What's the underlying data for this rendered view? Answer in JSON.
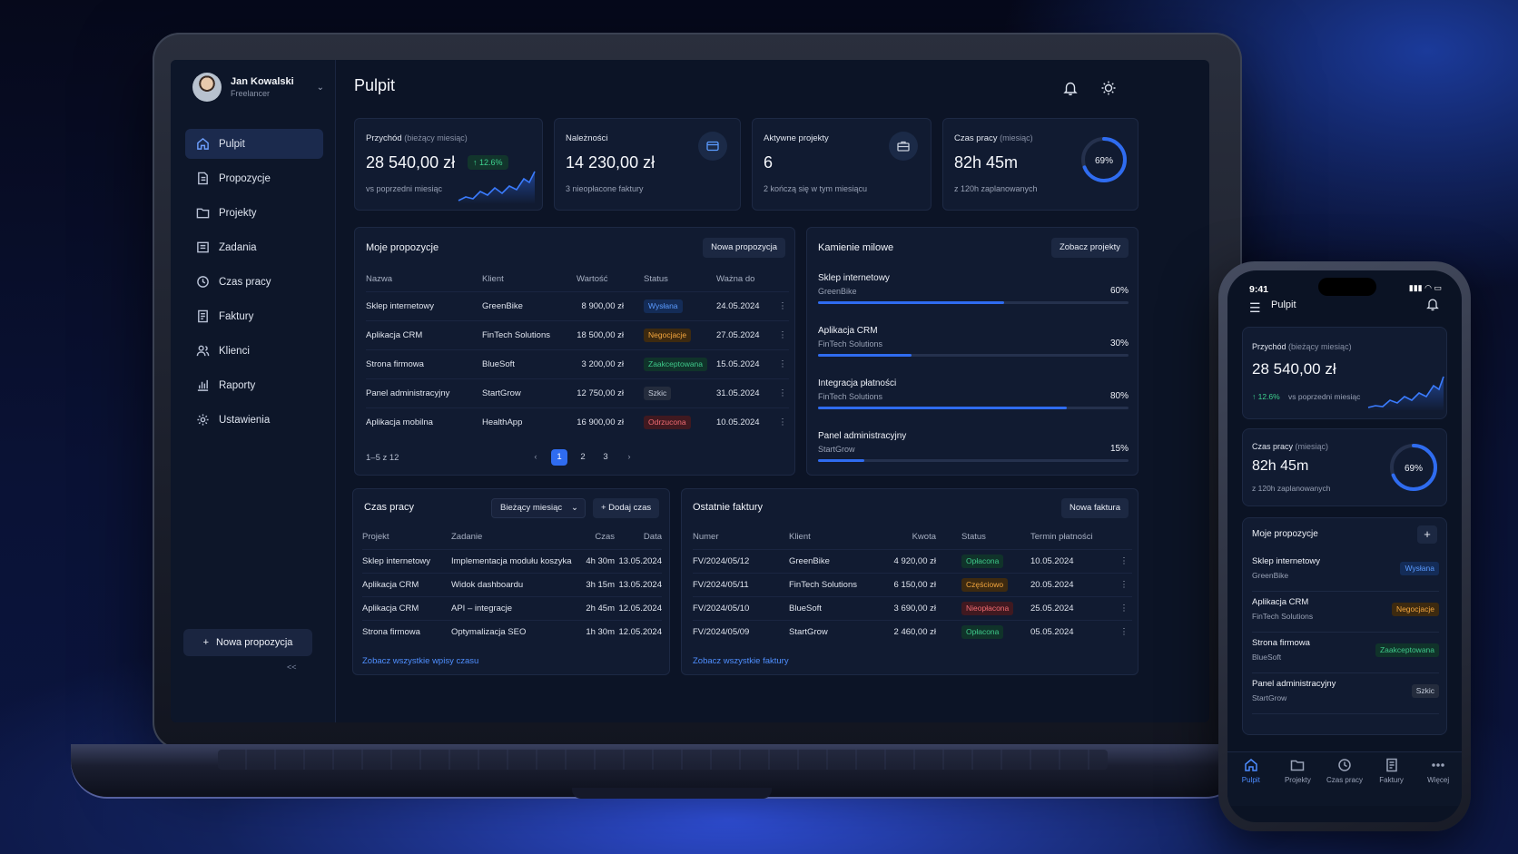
{
  "user": {
    "name": "Jan Kowalski",
    "role": "Freelancer"
  },
  "sidebar": {
    "items": [
      {
        "label": "Pulpit",
        "icon": "home-icon"
      },
      {
        "label": "Propozycje",
        "icon": "document-icon"
      },
      {
        "label": "Projekty",
        "icon": "folder-icon"
      },
      {
        "label": "Zadania",
        "icon": "tasks-icon"
      },
      {
        "label": "Czas pracy",
        "icon": "clock-icon"
      },
      {
        "label": "Faktury",
        "icon": "invoice-icon"
      },
      {
        "label": "Klienci",
        "icon": "users-icon"
      },
      {
        "label": "Raporty",
        "icon": "chart-icon"
      },
      {
        "label": "Ustawienia",
        "icon": "gear-icon"
      }
    ],
    "new_proposal": "Nowa propozycja",
    "collapse": "<<"
  },
  "header": {
    "title": "Pulpit"
  },
  "kpi": {
    "revenue": {
      "label": "Przychód",
      "label_note": "(bieżący miesiąc)",
      "value": "28 540,00 zł",
      "change": "↑ 12.6%",
      "sub": "vs poprzedni miesiąc"
    },
    "receivables": {
      "label": "Należności",
      "value": "14 230,00 zł",
      "sub": "3 nieopłacone faktury"
    },
    "projects": {
      "label": "Aktywne projekty",
      "value": "6",
      "sub": "2 kończą się w tym miesiącu"
    },
    "worktime": {
      "label": "Czas pracy",
      "label_note": "(miesiąc)",
      "value": "82h 45m",
      "sub": "z 120h zaplanowanych",
      "percent": "69%",
      "fraction": 0.69
    }
  },
  "proposals": {
    "title": "Moje propozycje",
    "button": "Nowa propozycja",
    "columns": [
      "Nazwa",
      "Klient",
      "Wartość",
      "Status",
      "Ważna do"
    ],
    "rows": [
      {
        "name": "Sklep internetowy",
        "client": "GreenBike",
        "value": "8 900,00 zł",
        "status": "Wysłana",
        "tone": "blue",
        "date": "24.05.2024"
      },
      {
        "name": "Aplikacja CRM",
        "client": "FinTech Solutions",
        "value": "18 500,00 zł",
        "status": "Negocjacje",
        "tone": "orange",
        "date": "27.05.2024"
      },
      {
        "name": "Strona firmowa",
        "client": "BlueSoft",
        "value": "3 200,00 zł",
        "status": "Zaakceptowana",
        "tone": "green",
        "date": "15.05.2024"
      },
      {
        "name": "Panel administracyjny",
        "client": "StartGrow",
        "value": "12 750,00 zł",
        "status": "Szkic",
        "tone": "gray",
        "date": "31.05.2024"
      },
      {
        "name": "Aplikacja mobilna",
        "client": "HealthApp",
        "value": "16 900,00 zł",
        "status": "Odrzucona",
        "tone": "red",
        "date": "10.05.2024"
      }
    ],
    "pagination": {
      "summary": "1–5 z 12",
      "prev": "‹",
      "next": "›",
      "pages": [
        "1",
        "2",
        "3"
      ]
    }
  },
  "milestones": {
    "title": "Kamienie milowe",
    "button": "Zobacz projekty",
    "items": [
      {
        "name": "Sklep internetowy",
        "client": "GreenBike",
        "percent": "60%",
        "progress": 0.6
      },
      {
        "name": "Aplikacja CRM",
        "client": "FinTech Solutions",
        "percent": "30%",
        "progress": 0.3
      },
      {
        "name": "Integracja płatności",
        "client": "FinTech Solutions",
        "percent": "80%",
        "progress": 0.8
      },
      {
        "name": "Panel administracyjny",
        "client": "StartGrow",
        "percent": "15%",
        "progress": 0.15
      }
    ]
  },
  "timelog": {
    "title": "Czas pracy",
    "select": "Bieżący miesiąc",
    "button": "+ Dodaj czas",
    "columns": [
      "Projekt",
      "Zadanie",
      "Czas",
      "Data"
    ],
    "rows": [
      {
        "project": "Sklep internetowy",
        "task": "Implementacja modułu koszyka",
        "time": "4h 30m",
        "date": "13.05.2024"
      },
      {
        "project": "Aplikacja CRM",
        "task": "Widok dashboardu",
        "time": "3h 15m",
        "date": "13.05.2024"
      },
      {
        "project": "Aplikacja CRM",
        "task": "API – integracje",
        "time": "2h 45m",
        "date": "12.05.2024"
      },
      {
        "project": "Strona firmowa",
        "task": "Optymalizacja SEO",
        "time": "1h 30m",
        "date": "12.05.2024"
      }
    ],
    "link": "Zobacz wszystkie wpisy czasu"
  },
  "invoices": {
    "title": "Ostatnie faktury",
    "button": "Nowa faktura",
    "columns": [
      "Numer",
      "Klient",
      "Kwota",
      "Status",
      "Termin płatności"
    ],
    "rows": [
      {
        "number": "FV/2024/05/12",
        "client": "GreenBike",
        "amount": "4 920,00 zł",
        "status": "Opłacona",
        "tone": "green",
        "due": "10.05.2024"
      },
      {
        "number": "FV/2024/05/11",
        "client": "FinTech Solutions",
        "amount": "6 150,00 zł",
        "status": "Częściowo",
        "tone": "orange",
        "due": "20.05.2024"
      },
      {
        "number": "FV/2024/05/10",
        "client": "BlueSoft",
        "amount": "3 690,00 zł",
        "status": "Nieopłacona",
        "tone": "red",
        "due": "25.05.2024"
      },
      {
        "number": "FV/2024/05/09",
        "client": "StartGrow",
        "amount": "2 460,00 zł",
        "status": "Opłacona",
        "tone": "green",
        "due": "05.05.2024"
      }
    ],
    "link": "Zobacz wszystkie faktury"
  },
  "phone": {
    "time": "9:41",
    "status": "▮▮▮ ◠ ▭",
    "title": "Pulpit",
    "revenue": {
      "label": "Przychód",
      "label_note": "(bieżący miesiąc)",
      "value": "28 540,00 zł",
      "change": "↑ 12.6%",
      "sub": "vs poprzedni miesiąc"
    },
    "worktime": {
      "label": "Czas pracy",
      "label_note": "(miesiąc)",
      "value": "82h 45m",
      "sub": "z 120h zaplanowanych",
      "percent": "69%"
    },
    "proposals_title": "Moje propozycje",
    "add": "+",
    "proposals": [
      {
        "name": "Sklep internetowy",
        "client": "GreenBike",
        "status": "Wysłana",
        "tone": "blue"
      },
      {
        "name": "Aplikacja CRM",
        "client": "FinTech Solutions",
        "status": "Negocjacje",
        "tone": "orange"
      },
      {
        "name": "Strona firmowa",
        "client": "BlueSoft",
        "status": "Zaakceptowana",
        "tone": "green"
      },
      {
        "name": "Panel administracyjny",
        "client": "StartGrow",
        "status": "Szkic",
        "tone": "gray"
      }
    ],
    "tabs": [
      {
        "label": "Pulpit",
        "icon": "home-icon"
      },
      {
        "label": "Projekty",
        "icon": "folder-icon"
      },
      {
        "label": "Czas pracy",
        "icon": "clock-icon"
      },
      {
        "label": "Faktury",
        "icon": "invoice-icon"
      },
      {
        "label": "Więcej",
        "icon": "more-icon"
      }
    ]
  },
  "colors": {
    "accent": "#2f6cf0",
    "background": "#0c1426",
    "card": "#111b31",
    "success": "#3ed38f"
  }
}
